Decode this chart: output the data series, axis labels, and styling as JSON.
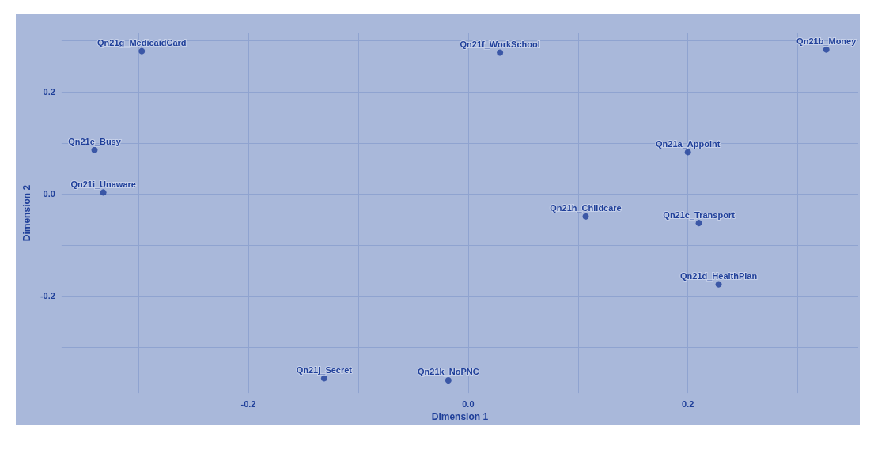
{
  "chart_data": {
    "type": "scatter",
    "xlabel": "Dimension 1",
    "ylabel": "Dimension 2",
    "x": [
      -0.297,
      0.029,
      0.326,
      -0.34,
      -0.332,
      0.2,
      0.107,
      0.21,
      0.228,
      -0.131,
      -0.018
    ],
    "series": [
      {
        "color": "#1f3f99",
        "values": [
          0.28,
          0.277,
          0.283,
          0.086,
          0.003,
          0.082,
          -0.044,
          -0.057,
          -0.177,
          -0.361,
          -0.365
        ]
      }
    ],
    "xlim": [
      -0.37,
      0.355
    ],
    "ylim": [
      -0.39,
      0.315
    ],
    "xticks": [
      {
        "value": -0.3,
        "label": null
      },
      -0.2,
      {
        "value": -0.1,
        "label": null
      },
      {
        "value": 0,
        "label": "0.0"
      },
      {
        "value": 0.1,
        "label": null
      },
      0.2,
      {
        "value": 0.3,
        "label": null
      }
    ],
    "yticks": [
      {
        "value": -0.3,
        "label": null
      },
      -0.2,
      {
        "value": -0.1,
        "label": null
      },
      {
        "value": 0,
        "label": "0.0"
      },
      {
        "value": 0.1,
        "label": null
      },
      0.2,
      {
        "value": 0.3,
        "label": null
      }
    ],
    "grid": true,
    "marker": "circle",
    "annotations": [
      {
        "text": "Qn21g_MedicaidCard",
        "x": -0.297,
        "y": 0.28
      },
      {
        "text": "Qn21f_WorkSchool",
        "x": 0.029,
        "y": 0.277
      },
      {
        "text": "Qn21b_Money",
        "x": 0.326,
        "y": 0.283
      },
      {
        "text": "Qn21e_Busy",
        "x": -0.34,
        "y": 0.086
      },
      {
        "text": "Qn21i_Unaware",
        "x": -0.332,
        "y": 0.003
      },
      {
        "text": "Qn21a_Appoint",
        "x": 0.2,
        "y": 0.082
      },
      {
        "text": "Qn21h_Childcare",
        "x": 0.107,
        "y": -0.044
      },
      {
        "text": "Qn21c_Transport",
        "x": 0.21,
        "y": -0.057
      },
      {
        "text": "Qn21d_HealthPlan",
        "x": 0.228,
        "y": -0.177
      },
      {
        "text": "Qn21j_Secret",
        "x": -0.131,
        "y": -0.361
      },
      {
        "text": "Qn21k_NoPNC",
        "x": -0.018,
        "y": -0.365
      }
    ]
  }
}
